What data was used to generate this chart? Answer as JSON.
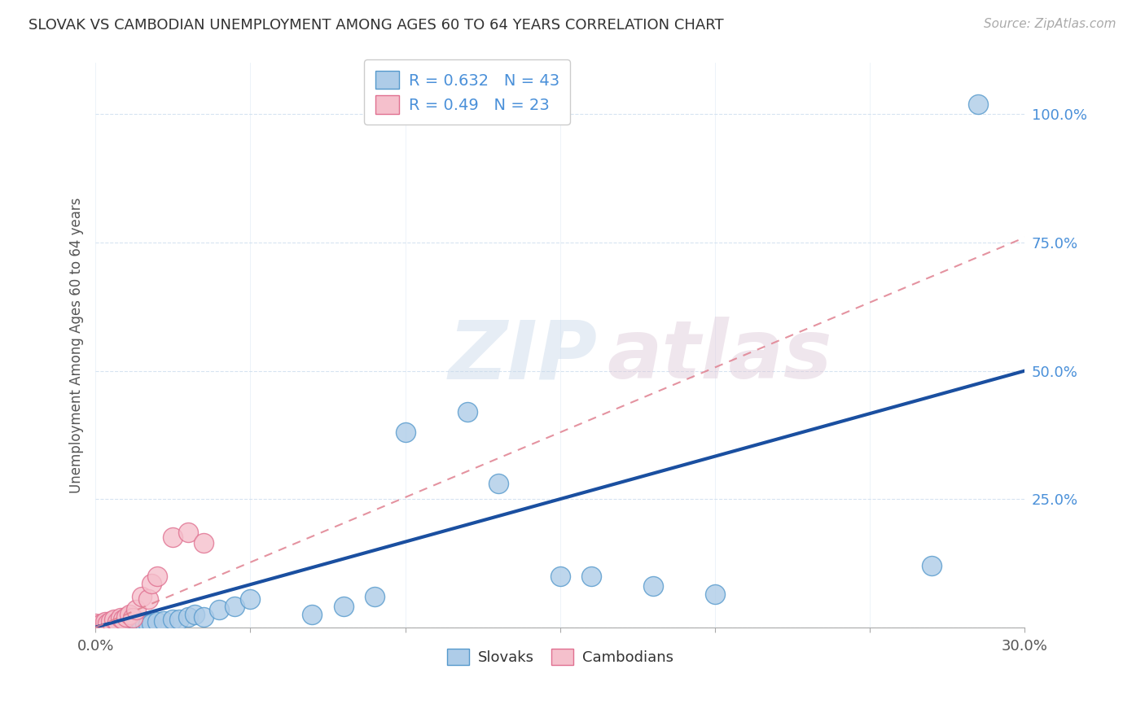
{
  "title": "SLOVAK VS CAMBODIAN UNEMPLOYMENT AMONG AGES 60 TO 64 YEARS CORRELATION CHART",
  "source": "Source: ZipAtlas.com",
  "ylabel": "Unemployment Among Ages 60 to 64 years",
  "xlim": [
    0.0,
    0.3
  ],
  "ylim": [
    0.0,
    1.1
  ],
  "slovak_R": 0.632,
  "slovak_N": 43,
  "cambodian_R": 0.49,
  "cambodian_N": 23,
  "slovak_color": "#aecce8",
  "slovak_edge_color": "#5599cc",
  "cambodian_color": "#f5c0cc",
  "cambodian_edge_color": "#e07090",
  "slovak_trend_color": "#1a4fa0",
  "cambodian_trend_color": "#e08090",
  "slovak_trend_x": [
    0.0,
    0.3
  ],
  "slovak_trend_y": [
    0.0,
    0.5
  ],
  "cambodian_trend_x": [
    0.0,
    0.3
  ],
  "cambodian_trend_y": [
    0.0,
    0.76
  ],
  "slovak_points_x": [
    0.0,
    0.001,
    0.002,
    0.003,
    0.004,
    0.005,
    0.005,
    0.006,
    0.007,
    0.008,
    0.009,
    0.01,
    0.01,
    0.011,
    0.012,
    0.013,
    0.014,
    0.015,
    0.016,
    0.017,
    0.018,
    0.02,
    0.022,
    0.025,
    0.027,
    0.03,
    0.032,
    0.035,
    0.04,
    0.045,
    0.05,
    0.07,
    0.08,
    0.09,
    0.1,
    0.12,
    0.13,
    0.15,
    0.16,
    0.18,
    0.2,
    0.27,
    0.285
  ],
  "slovak_points_y": [
    0.0,
    0.002,
    0.001,
    0.003,
    0.002,
    0.004,
    0.005,
    0.003,
    0.004,
    0.003,
    0.005,
    0.004,
    0.006,
    0.005,
    0.006,
    0.005,
    0.007,
    0.006,
    0.007,
    0.006,
    0.008,
    0.01,
    0.012,
    0.015,
    0.015,
    0.02,
    0.025,
    0.02,
    0.035,
    0.04,
    0.055,
    0.025,
    0.04,
    0.06,
    0.38,
    0.42,
    0.28,
    0.1,
    0.1,
    0.08,
    0.065,
    0.12,
    1.02
  ],
  "cambodian_points_x": [
    0.0,
    0.0,
    0.001,
    0.002,
    0.003,
    0.003,
    0.004,
    0.005,
    0.006,
    0.007,
    0.008,
    0.009,
    0.01,
    0.011,
    0.012,
    0.013,
    0.015,
    0.017,
    0.018,
    0.02,
    0.025,
    0.03,
    0.035
  ],
  "cambodian_points_y": [
    0.003,
    0.008,
    0.005,
    0.008,
    0.003,
    0.01,
    0.008,
    0.012,
    0.015,
    0.01,
    0.018,
    0.015,
    0.02,
    0.025,
    0.018,
    0.035,
    0.06,
    0.055,
    0.085,
    0.1,
    0.175,
    0.185,
    0.165
  ]
}
